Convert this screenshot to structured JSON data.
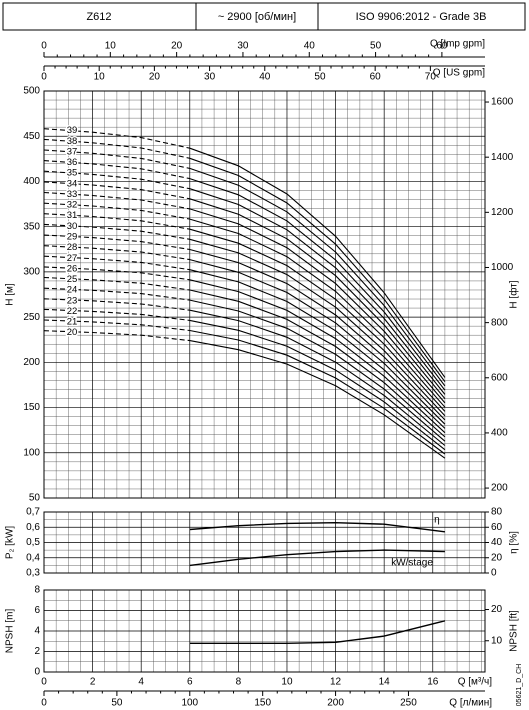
{
  "header": {
    "cells": [
      "Z612",
      "~ 2900 [об/мин]",
      "ISO 9906:2012 - Grade 3B"
    ]
  },
  "footnote": "05621_D_CH",
  "chart_data": [
    {
      "type": "line",
      "ylabel": "H [м]",
      "y2label": "H [фт]",
      "ylim": [
        50,
        500
      ],
      "yticks": [
        50,
        100,
        150,
        200,
        250,
        300,
        350,
        400,
        450,
        500
      ],
      "y2lim": [
        164,
        1640
      ],
      "y2ticks": [
        200,
        400,
        600,
        800,
        1000,
        1200,
        1400,
        1600
      ],
      "grid": true,
      "dashed_until": 6,
      "top_axes": [
        {
          "label": "Q [Imp gpm]",
          "xlim": [
            0,
            66.5
          ],
          "xticks": [
            0,
            10,
            20,
            30,
            40,
            50,
            60
          ]
        },
        {
          "label": "Q [US gpm]",
          "xlim": [
            0,
            79.9
          ],
          "xticks": [
            0,
            10,
            20,
            30,
            40,
            50,
            60,
            70
          ]
        }
      ],
      "x": [
        0,
        2,
        4,
        6,
        8,
        10,
        12,
        14,
        16.5
      ],
      "series": [
        {
          "name": "20",
          "color": "#000",
          "values": [
            235,
            233,
            230,
            224,
            214,
            198,
            174,
            142,
            94
          ]
        },
        {
          "name": "21",
          "color": "#000",
          "values": [
            246.8,
            244.7,
            241.5,
            235.2,
            224.7,
            207.9,
            182.7,
            149.1,
            98.7
          ]
        },
        {
          "name": "22",
          "color": "#000",
          "values": [
            258.5,
            256.3,
            253,
            246.4,
            235.4,
            217.8,
            191.4,
            156.2,
            103.4
          ]
        },
        {
          "name": "23",
          "color": "#000",
          "values": [
            270.3,
            268,
            264.5,
            257.6,
            246.1,
            227.7,
            200.1,
            163.3,
            108.1
          ]
        },
        {
          "name": "24",
          "color": "#000",
          "values": [
            282,
            279.6,
            276,
            268.8,
            256.8,
            237.6,
            208.8,
            170.4,
            112.8
          ]
        },
        {
          "name": "25",
          "color": "#000",
          "values": [
            293.8,
            291.3,
            287.5,
            280,
            267.5,
            247.5,
            217.5,
            177.5,
            117.5
          ]
        },
        {
          "name": "26",
          "color": "#000",
          "values": [
            305.5,
            302.9,
            299,
            291.2,
            278.2,
            257.4,
            226.2,
            184.6,
            122.2
          ]
        },
        {
          "name": "27",
          "color": "#000",
          "values": [
            317.3,
            314.6,
            310.5,
            302.4,
            288.9,
            267.3,
            234.9,
            191.7,
            126.9
          ]
        },
        {
          "name": "28",
          "color": "#000",
          "values": [
            329,
            326.2,
            322,
            313.6,
            299.6,
            277.2,
            243.6,
            198.8,
            131.6
          ]
        },
        {
          "name": "29",
          "color": "#000",
          "values": [
            340.8,
            337.9,
            333.5,
            324.8,
            310.3,
            287.1,
            252.3,
            205.9,
            136.3
          ]
        },
        {
          "name": "30",
          "color": "#000",
          "values": [
            352.5,
            349.5,
            345,
            336,
            321,
            297,
            261,
            213,
            141
          ]
        },
        {
          "name": "31",
          "color": "#000",
          "values": [
            364.3,
            361.2,
            356.5,
            347.2,
            331.7,
            306.9,
            269.7,
            220.1,
            145.7
          ]
        },
        {
          "name": "32",
          "color": "#000",
          "values": [
            376,
            372.8,
            368,
            358.4,
            342.4,
            316.8,
            278.4,
            227.2,
            150.4
          ]
        },
        {
          "name": "33",
          "color": "#000",
          "values": [
            387.8,
            384.5,
            379.5,
            369.6,
            353.1,
            326.7,
            287.1,
            234.3,
            155.1
          ]
        },
        {
          "name": "34",
          "color": "#000",
          "values": [
            399.5,
            396.1,
            391,
            380.8,
            363.8,
            336.6,
            295.8,
            241.4,
            159.8
          ]
        },
        {
          "name": "35",
          "color": "#000",
          "values": [
            411.3,
            407.8,
            402.5,
            392,
            374.5,
            346.5,
            304.5,
            248.5,
            164.5
          ]
        },
        {
          "name": "36",
          "color": "#000",
          "values": [
            423,
            419.4,
            414,
            403.2,
            385.2,
            356.4,
            313.2,
            255.6,
            169.2
          ]
        },
        {
          "name": "37",
          "color": "#000",
          "values": [
            434.8,
            431.1,
            425.5,
            414.4,
            395.9,
            366.3,
            321.9,
            262.7,
            173.9
          ]
        },
        {
          "name": "38",
          "color": "#000",
          "values": [
            446.5,
            442.7,
            437,
            425.6,
            406.6,
            376.2,
            330.6,
            269.8,
            178.6
          ]
        },
        {
          "name": "39",
          "color": "#000",
          "values": [
            458.3,
            454.4,
            448.5,
            436.8,
            417.3,
            386.1,
            339.3,
            276.9,
            183.3
          ]
        }
      ]
    },
    {
      "type": "line",
      "ylabel": "P₂ [kW]",
      "y2label": "η [%]",
      "ylim": [
        0.3,
        0.7
      ],
      "yticks": [
        {
          "value": 0.3,
          "label": "0,3"
        },
        {
          "value": 0.4,
          "label": "0,4"
        },
        {
          "value": 0.5,
          "label": "0,5"
        },
        {
          "value": 0.6,
          "label": "0,6"
        },
        {
          "value": 0.7,
          "label": "0,7"
        }
      ],
      "y2lim": [
        0,
        80
      ],
      "y2ticks": [
        0,
        20,
        40,
        60,
        80
      ],
      "grid": true,
      "x": [
        6,
        8,
        10,
        12,
        14,
        16.5
      ],
      "series": [
        {
          "name": "η",
          "color": "#000",
          "axis": "y2",
          "values": [
            57,
            62,
            65,
            66,
            64,
            54
          ]
        },
        {
          "name": "kW/stage",
          "color": "#000",
          "values": [
            0.35,
            0.39,
            0.42,
            0.44,
            0.45,
            0.44
          ]
        }
      ]
    },
    {
      "type": "line",
      "ylabel": "NPSH [m]",
      "y2label": "NPSH [ft]",
      "ylim": [
        0,
        8
      ],
      "yticks": [
        0,
        2,
        4,
        6,
        8
      ],
      "y2lim": [
        0,
        26.25
      ],
      "y2ticks": [
        10,
        20
      ],
      "grid": true,
      "xlabel": "Q [м³/ч]",
      "xlim": [
        0,
        18.15
      ],
      "xticks": [
        0,
        2,
        4,
        6,
        8,
        10,
        12,
        14,
        16
      ],
      "bottom_axis2": {
        "label": "Q [л/мин]",
        "xlim": [
          0,
          302.5
        ],
        "xticks": [
          0,
          50,
          100,
          150,
          200,
          250
        ]
      },
      "x": [
        6,
        8,
        10,
        12,
        14,
        16.5
      ],
      "series": [
        {
          "name": "NPSH",
          "color": "#000",
          "values": [
            2.8,
            2.8,
            2.8,
            2.9,
            3.5,
            5.0
          ]
        }
      ]
    }
  ]
}
